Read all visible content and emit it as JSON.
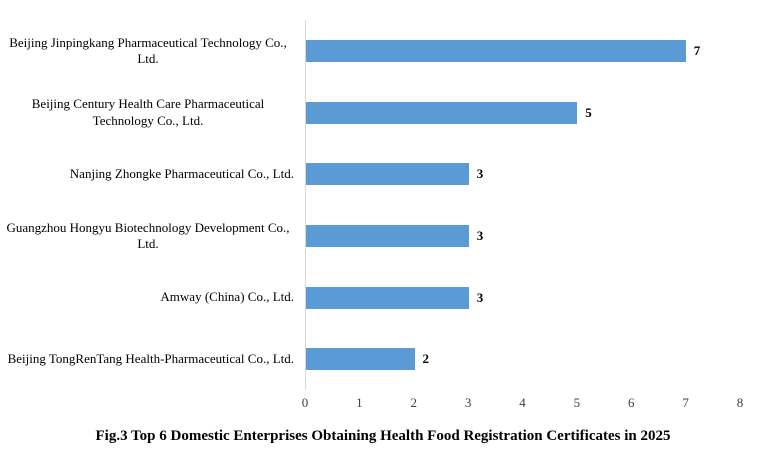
{
  "chart_data": {
    "type": "bar",
    "orientation": "horizontal",
    "title": "Fig.3 Top 6 Domestic Enterprises Obtaining Health Food Registration Certificates in 2025",
    "categories": [
      "Beijing Jinpingkang Pharmaceutical Technology Co., Ltd.",
      "Beijing Century Health Care Pharmaceutical Technology Co., Ltd.",
      "Nanjing Zhongke Pharmaceutical Co., Ltd.",
      "Guangzhou Hongyu Biotechnology Development Co., Ltd.",
      "Amway (China) Co., Ltd.",
      "Beijing TongRenTang Health-Pharmaceutical Co., Ltd."
    ],
    "values": [
      7,
      5,
      3,
      3,
      3,
      2
    ],
    "data_labels_bold": true,
    "xlabel": "",
    "ylabel": "",
    "xlim": [
      0,
      8
    ],
    "x_ticks": [
      "0",
      "1",
      "2",
      "3",
      "4",
      "5",
      "6",
      "7",
      "8"
    ],
    "bar_color": "#5b9bd5",
    "axis_line_color": "#d9d9d9",
    "grid": false,
    "legend": false
  }
}
